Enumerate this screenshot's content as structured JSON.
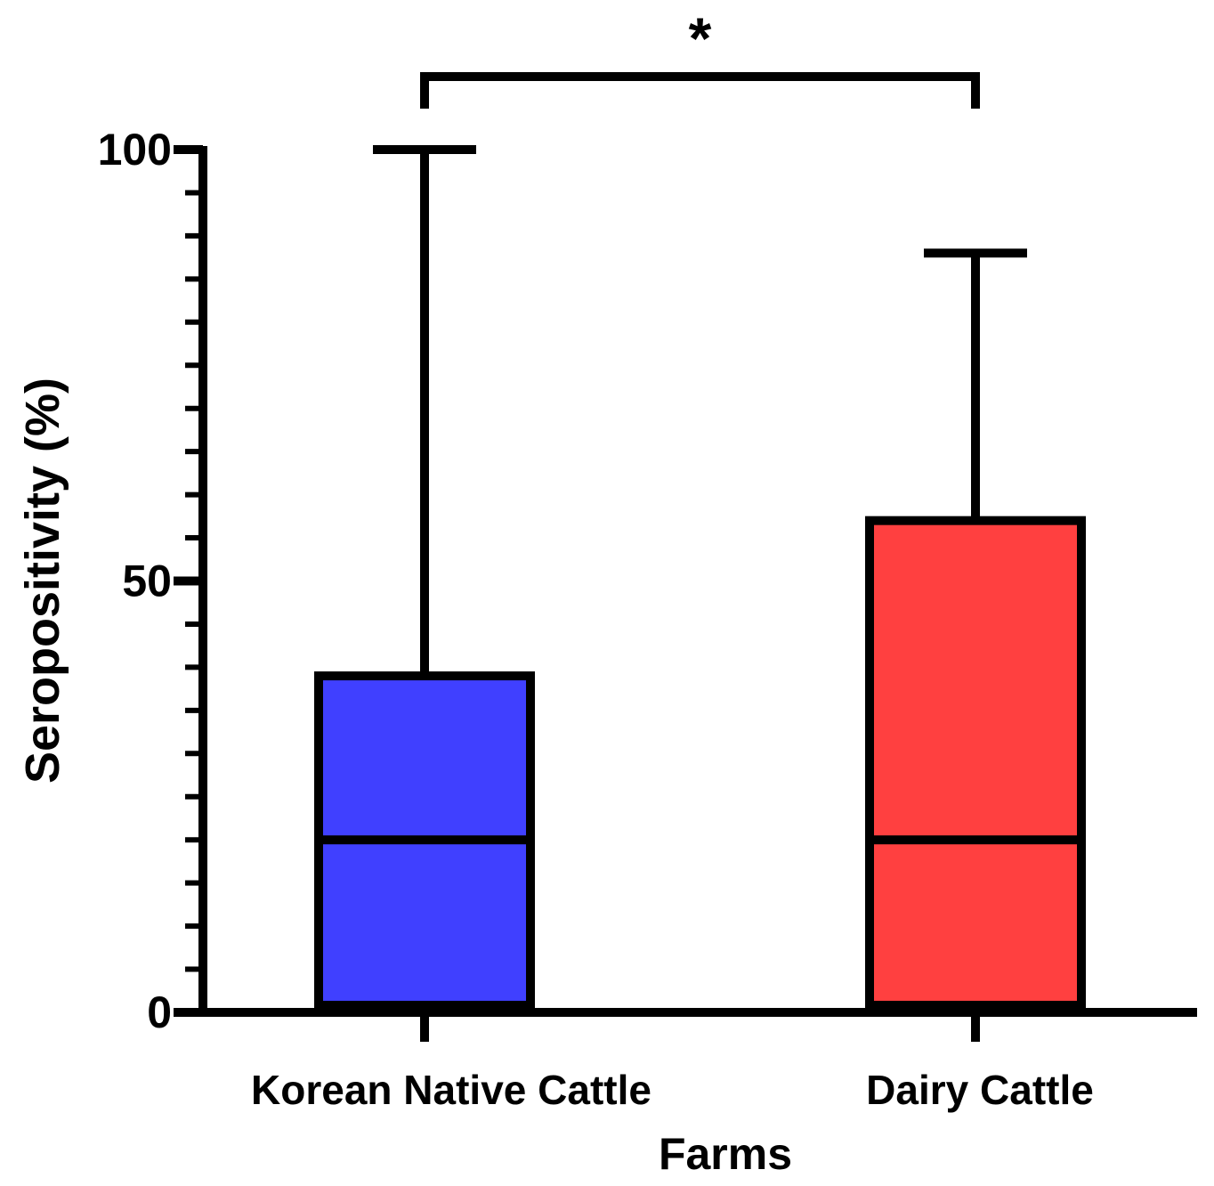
{
  "chart_data": {
    "type": "box",
    "xlabel": "Farms",
    "ylabel": "Seropositivity (%)",
    "ylim": [
      0,
      100
    ],
    "yticks": [
      {
        "value": 0,
        "label": "0"
      },
      {
        "value": 50,
        "label": "50"
      },
      {
        "value": 100,
        "label": "100"
      }
    ],
    "minor_tick_step": 5,
    "groups": [
      {
        "category": "Korean Native Cattle",
        "color": "#4040ff",
        "min": 0,
        "q1": 0,
        "median": 20,
        "q3": 39,
        "max": 100
      },
      {
        "category": "Dairy Cattle",
        "color": "#ff4040",
        "min": 0,
        "q1": 0,
        "median": 20,
        "q3": 57,
        "max": 88
      }
    ],
    "significance": {
      "label": "*",
      "between": [
        "Korean Native Cattle",
        "Dairy Cattle"
      ]
    },
    "grid": false,
    "legend": "none"
  }
}
